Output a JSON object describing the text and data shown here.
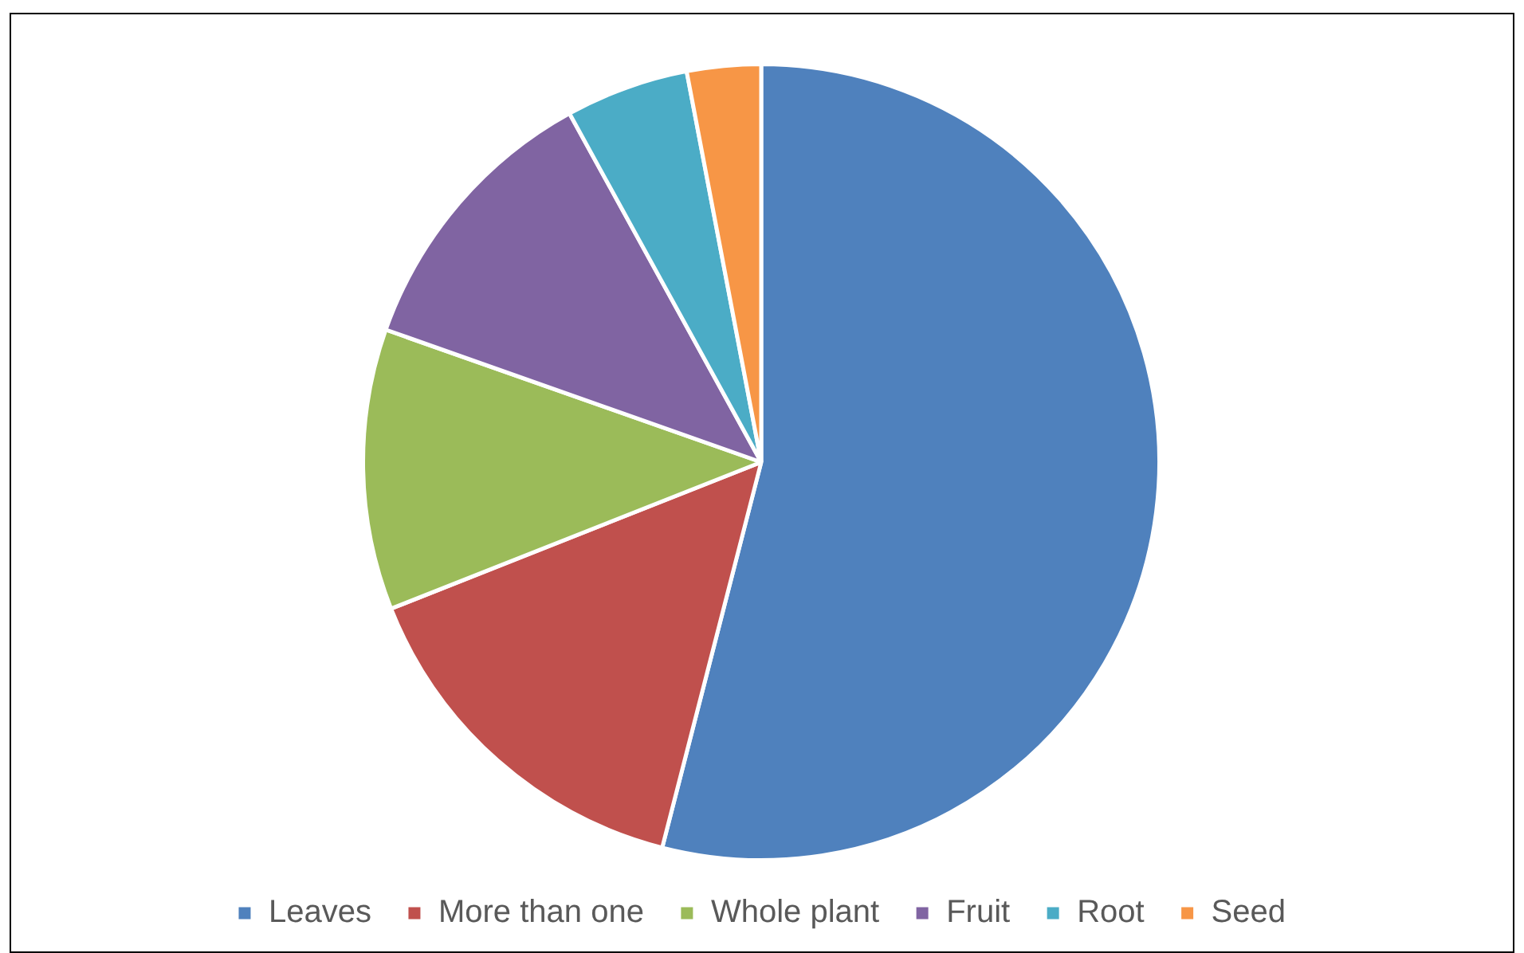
{
  "chart_data": {
    "type": "pie",
    "categories": [
      "Leaves",
      "More than one",
      "Whole plant",
      "Fruit",
      "Root",
      "Seed"
    ],
    "values": [
      54,
      15,
      11.4,
      11.6,
      5,
      3
    ],
    "colors": [
      "#4f81bd",
      "#c0504d",
      "#9bbb59",
      "#8064a2",
      "#4bacc6",
      "#f79646"
    ],
    "legend": "bottom"
  }
}
